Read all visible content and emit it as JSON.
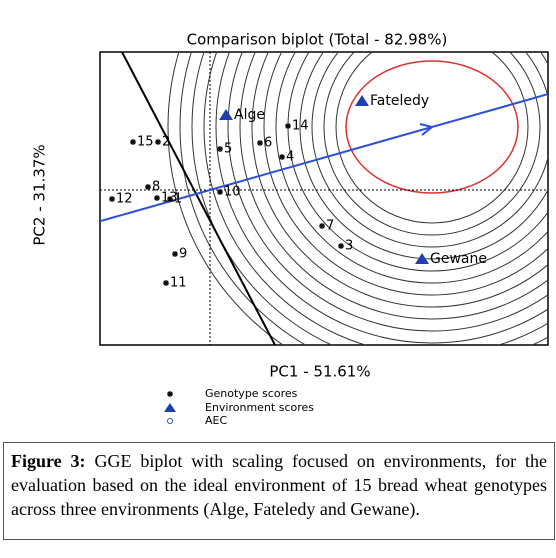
{
  "chart_data": {
    "type": "scatter",
    "title": "Comparison biplot (Total - 82.98%)",
    "x_label": "PC1 - 51.61%",
    "y_label": "PC2 - 31.37%",
    "xlim": [
      -2.2,
      6.76
    ],
    "ylim": [
      -3.1,
      2.76
    ],
    "series": [
      {
        "name": "Genotype scores",
        "color": "#000000",
        "labels": [
          "1",
          "2",
          "3",
          "4",
          "5",
          "6",
          "7",
          "8",
          "9",
          "10",
          "11",
          "12",
          "13",
          "14",
          "15"
        ],
        "x": [
          -0.8,
          -1.04,
          2.62,
          1.44,
          0.2,
          1.0,
          2.24,
          -1.24,
          -0.7,
          0.2,
          -0.88,
          -1.96,
          -1.06,
          1.56,
          -1.54
        ],
        "values": [
          -0.18,
          0.96,
          -1.12,
          0.66,
          0.82,
          0.94,
          -0.72,
          0.06,
          -1.28,
          -0.04,
          -1.86,
          -0.18,
          -0.16,
          1.28,
          0.96
        ]
      },
      {
        "name": "Environment scores",
        "color": "#1f3fae",
        "labels": [
          "Alge",
          "Fateledy",
          "Gewane"
        ],
        "x": [
          0.32,
          3.04,
          4.24
        ],
        "values": [
          1.5,
          1.78,
          -1.38
        ]
      }
    ],
    "aec": {
      "name": "AEC",
      "color": "#2a4fd8"
    }
  },
  "caption": {
    "label": "Figure 3:",
    "text": "GGE biplot with scaling focused on environments, for the evaluation based on the ideal environment of 15 bread wheat genotypes across three environments (Alge, Fateledy and Gewane)."
  }
}
